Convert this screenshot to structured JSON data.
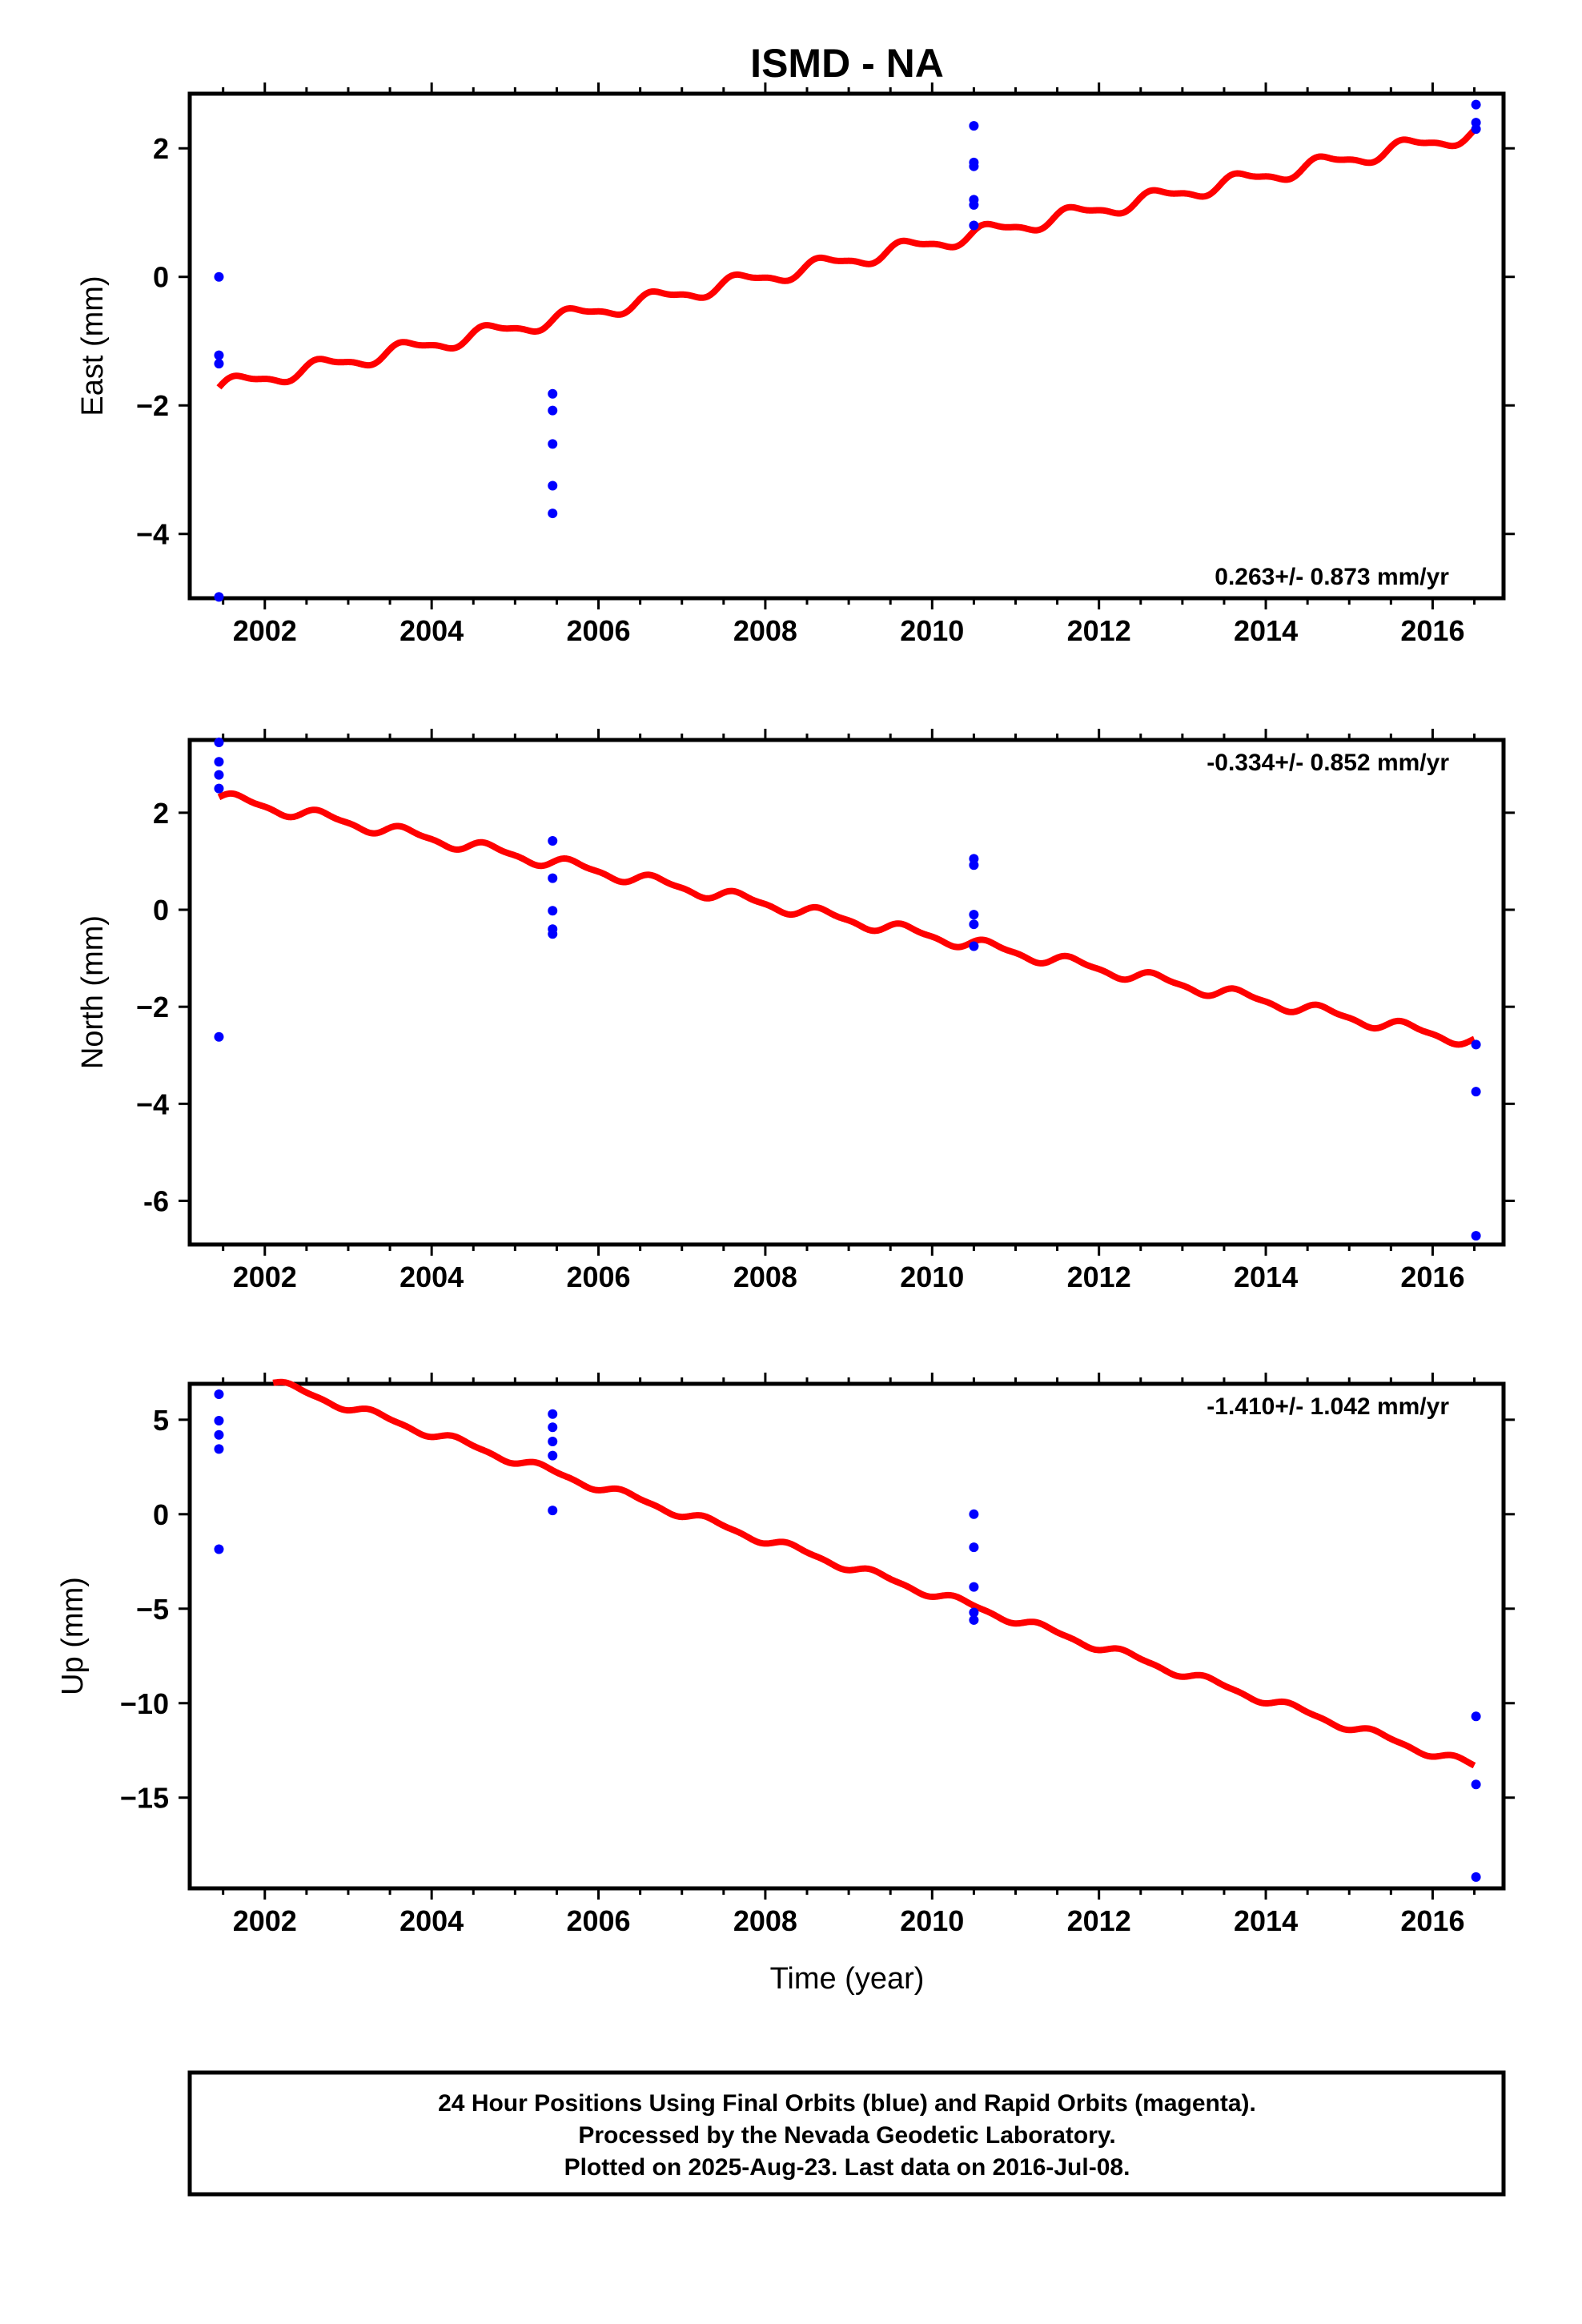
{
  "title": "ISMD - NA",
  "colors": {
    "final": "#0000ff",
    "model": "#ff0000",
    "axis": "#000000"
  },
  "chart_data": [
    {
      "type": "scatter",
      "ylabel": "East (mm)",
      "xlabel": "",
      "xlim": [
        2001.1,
        2016.85
      ],
      "ylim": [
        -5.0,
        2.85
      ],
      "xticks": [
        2002,
        2004,
        2006,
        2008,
        2010,
        2012,
        2014,
        2016
      ],
      "yticks": [
        2,
        0,
        -2,
        -4
      ],
      "ytick_labels": [
        "2",
        "0",
        "−2",
        "−4"
      ],
      "rate_label": "0.263+/- 0.873 mm/yr",
      "rate_position": "bottom-right",
      "points": [
        [
          2001.45,
          0.0
        ],
        [
          2001.45,
          -1.22
        ],
        [
          2001.45,
          -1.35
        ],
        [
          2001.45,
          -4.98
        ],
        [
          2005.45,
          -1.82
        ],
        [
          2005.45,
          -2.08
        ],
        [
          2005.45,
          -2.6
        ],
        [
          2005.45,
          -3.25
        ],
        [
          2005.45,
          -3.68
        ],
        [
          2010.5,
          2.35
        ],
        [
          2010.5,
          1.78
        ],
        [
          2010.5,
          1.72
        ],
        [
          2010.5,
          1.2
        ],
        [
          2010.5,
          1.12
        ],
        [
          2010.5,
          0.8
        ],
        [
          2016.52,
          2.68
        ],
        [
          2016.52,
          2.4
        ],
        [
          2016.52,
          2.3
        ]
      ],
      "model": {
        "x0": 2001.45,
        "x1": 2016.5,
        "y0": -1.72,
        "y1": 2.23,
        "amp": 0.11,
        "phase": 0.0
      }
    },
    {
      "type": "scatter",
      "ylabel": "North (mm)",
      "xlabel": "",
      "xlim": [
        2001.1,
        2016.85
      ],
      "ylim": [
        -6.9,
        3.5
      ],
      "xticks": [
        2002,
        2004,
        2006,
        2008,
        2010,
        2012,
        2014,
        2016
      ],
      "yticks": [
        2,
        0,
        -2,
        -4,
        -6
      ],
      "ytick_labels": [
        "2",
        "0",
        "−2",
        "−4",
        "-6"
      ],
      "rate_label": "-0.334+/- 0.852 mm/yr",
      "rate_position": "top-right",
      "points": [
        [
          2001.45,
          3.45
        ],
        [
          2001.45,
          3.05
        ],
        [
          2001.45,
          2.78
        ],
        [
          2001.45,
          2.5
        ],
        [
          2001.45,
          -2.62
        ],
        [
          2005.45,
          1.42
        ],
        [
          2005.45,
          0.65
        ],
        [
          2005.45,
          -0.02
        ],
        [
          2005.45,
          -0.4
        ],
        [
          2005.45,
          -0.5
        ],
        [
          2010.5,
          1.05
        ],
        [
          2010.5,
          0.92
        ],
        [
          2010.5,
          -0.1
        ],
        [
          2010.5,
          -0.3
        ],
        [
          2010.5,
          -0.75
        ],
        [
          2016.52,
          -2.78
        ],
        [
          2016.52,
          -3.75
        ],
        [
          2016.52,
          -6.72
        ]
      ],
      "model": {
        "x0": 2001.45,
        "x1": 2016.5,
        "y0": 2.32,
        "y1": -2.72,
        "amp": 0.11,
        "phase": 0.0
      }
    },
    {
      "type": "scatter",
      "ylabel": "Up (mm)",
      "xlabel": "Time (year)",
      "xlim": [
        2001.1,
        2016.85
      ],
      "ylim": [
        -19.8,
        6.9
      ],
      "xticks": [
        2002,
        2004,
        2006,
        2008,
        2010,
        2012,
        2014,
        2016
      ],
      "yticks": [
        5,
        0,
        -5,
        -10,
        -15
      ],
      "ytick_labels": [
        "5",
        "0",
        "−5",
        "−10",
        "−15"
      ],
      "rate_label": "-1.410+/- 1.042 mm/yr",
      "rate_position": "top-right",
      "points": [
        [
          2001.45,
          6.35
        ],
        [
          2001.45,
          4.95
        ],
        [
          2001.45,
          4.2
        ],
        [
          2001.45,
          3.45
        ],
        [
          2001.45,
          -1.85
        ],
        [
          2005.45,
          5.3
        ],
        [
          2005.45,
          4.6
        ],
        [
          2005.45,
          3.85
        ],
        [
          2005.45,
          3.1
        ],
        [
          2005.45,
          0.2
        ],
        [
          2010.5,
          0.0
        ],
        [
          2010.5,
          -1.75
        ],
        [
          2010.5,
          -3.85
        ],
        [
          2010.5,
          -5.2
        ],
        [
          2010.5,
          -5.6
        ],
        [
          2016.52,
          -10.7
        ],
        [
          2016.52,
          -14.3
        ],
        [
          2016.52,
          -19.2
        ]
      ],
      "model": {
        "x0": 2002.1,
        "x1": 2016.5,
        "y0": 6.95,
        "y1": -13.35,
        "amp": 0.2,
        "phase": 0.0
      }
    }
  ],
  "footer": {
    "line1": "24 Hour Positions Using Final Orbits (blue) and Rapid Orbits (magenta).",
    "line2": "Processed by the Nevada Geodetic Laboratory.",
    "line3": "Plotted on 2025-Aug-23. Last data on 2016-Jul-08."
  }
}
